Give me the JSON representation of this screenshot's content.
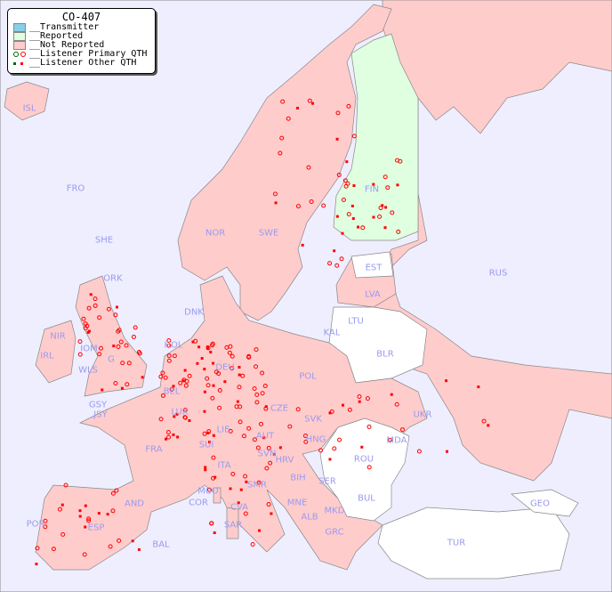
{
  "legend": {
    "title": "CO-407",
    "items": [
      {
        "label": "__Transmitter",
        "color": "#87ceeb"
      },
      {
        "label": "__Reported",
        "color": "#e0ffe0"
      },
      {
        "label": "__Not Reported",
        "color": "#ffcccc"
      },
      {
        "label": "__Listener Primary QTH",
        "colors": [
          "#006600",
          "#ff0000"
        ]
      },
      {
        "label": "__Listener Other QTH",
        "colors": [
          "#006600",
          "#ff0000"
        ]
      }
    ]
  },
  "colors": {
    "sea": "#eeeeff",
    "not_reported": "#ffcccc",
    "reported": "#e0ffe0",
    "no_data": "#ffffff",
    "listener": "#ff0000",
    "label": "#9a9aee"
  },
  "countries": [
    "ISL",
    "FRO",
    "SHE",
    "ORK",
    "NOR",
    "SWE",
    "FIN",
    "EST",
    "RUS",
    "LVA",
    "LTU",
    "KAL",
    "BLR",
    "DNK",
    "HOL",
    "DEU",
    "POL",
    "IRL",
    "NIR",
    "IOM",
    "WLS",
    "G",
    "BEL",
    "LUX",
    "GSY",
    "JSY",
    "CZE",
    "SVK",
    "UKR",
    "FRA",
    "SUI",
    "LIE",
    "AUT",
    "HNG",
    "MDA",
    "SVN",
    "HRV",
    "ROU",
    "ITA",
    "BIH",
    "SER",
    "SMR",
    "MCO",
    "COR",
    "BUL",
    "GEO",
    "AND",
    "MNE",
    "ALB",
    "MKD",
    "CVA",
    "POR",
    "ESP",
    "SAR",
    "GRC",
    "TUR",
    "BAL"
  ]
}
